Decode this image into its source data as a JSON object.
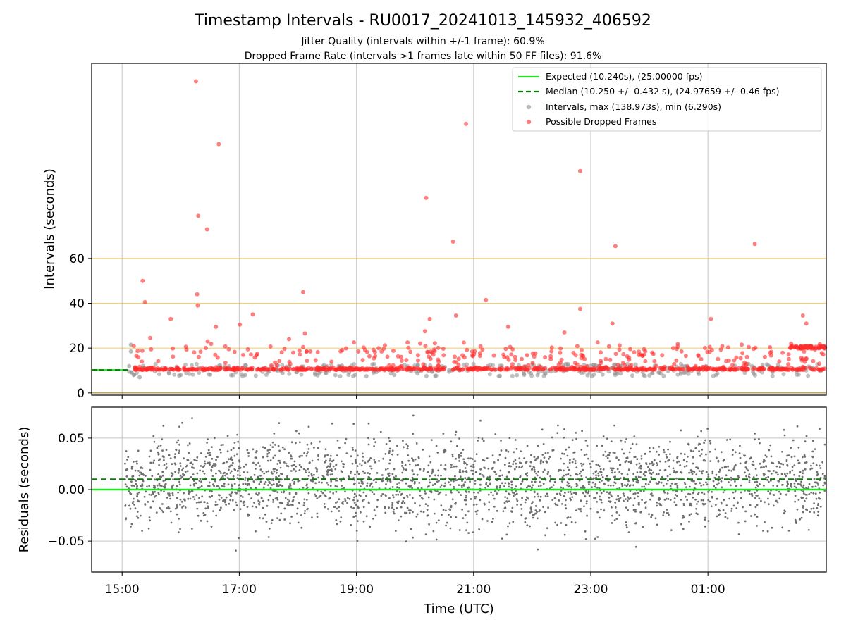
{
  "chart_data": [
    {
      "type": "scatter",
      "title": "Timestamp Intervals - RU0017_20241013_145932_406592",
      "subtitle_1": "Jitter Quality (intervals within +/-1 frame): 60.9%",
      "subtitle_2": "Dropped Frame Rate (intervals >1 frames late within 50 FF files): 91.6%",
      "xlabel": "",
      "ylabel": "Intervals (seconds)",
      "xlim_hours": [
        14.48,
        27.02
      ],
      "ylim": [
        -1,
        147
      ],
      "yticks": [
        0,
        20,
        40,
        60
      ],
      "ytick_labels": [
        "0",
        "20",
        "40",
        "60"
      ],
      "reference_lines_y": [
        20,
        40,
        60
      ],
      "reference_line_color": "#f5c542",
      "legend_location": "upper right",
      "legend": [
        {
          "label": "Expected (10.240s), (25.00000 fps)",
          "kind": "solid-line",
          "color": "#22e622"
        },
        {
          "label": "Median (10.250 +/- 0.432 s), (24.97659 +/- 0.46 fps)",
          "kind": "dashed-line",
          "color": "#0a7a0a"
        },
        {
          "label": "Intervals, max (138.973s), min (6.290s)",
          "kind": "marker",
          "color": "#8c8c8c"
        },
        {
          "label": "Possible Dropped Frames",
          "kind": "marker",
          "color": "#ff2a2a"
        }
      ],
      "series": [
        {
          "name": "Possible Dropped Frames",
          "color": "#ff2a2a",
          "points_time_hours": [
            16.26,
            16.65,
            20.87,
            22.82,
            20.19,
            16.3,
            16.45,
            20.65,
            23.42,
            25.8,
            15.35,
            15.39,
            18.09,
            16.28,
            21.21,
            16.29,
            20.7,
            22.82,
            17.23,
            26.62,
            25.05,
            20.25,
            23.37,
            21.59,
            17.01,
            16.6,
            22.55,
            26.68,
            16.46,
            15.48,
            15.83,
            17.85,
            18.12,
            20.17,
            15.2
          ],
          "points_interval_s": [
            139.0,
            111.0,
            120.0,
            99.0,
            87.0,
            79.0,
            73.0,
            67.5,
            65.5,
            66.5,
            50.0,
            40.5,
            45.0,
            44.0,
            41.5,
            39.0,
            34.5,
            37.5,
            35.0,
            34.5,
            33.0,
            33.0,
            31.0,
            29.5,
            30.5,
            29.5,
            27.0,
            31.0,
            23.0,
            24.5,
            33.0,
            24.0,
            26.5,
            27.5,
            21.0
          ]
        },
        {
          "name": "Intervals, max (138.973s), min (6.290s)",
          "color": "#8c8c8c"
        }
      ]
    },
    {
      "type": "scatter",
      "xlabel": "Time (UTC)",
      "ylabel": "Residuals (seconds)",
      "ylim": [
        -0.08,
        0.08
      ],
      "yticks": [
        -0.05,
        0.0,
        0.05
      ],
      "ytick_labels": [
        "−0.05",
        "0.00",
        "0.05"
      ],
      "xticks_hours": [
        15,
        17,
        19,
        21,
        23,
        25
      ],
      "xtick_labels": [
        "15:00",
        "17:00",
        "19:00",
        "21:00",
        "23:00",
        "01:00"
      ],
      "expected_residual": 0.0,
      "median_residual": 0.01,
      "point_color": "#6e6e6e"
    }
  ]
}
